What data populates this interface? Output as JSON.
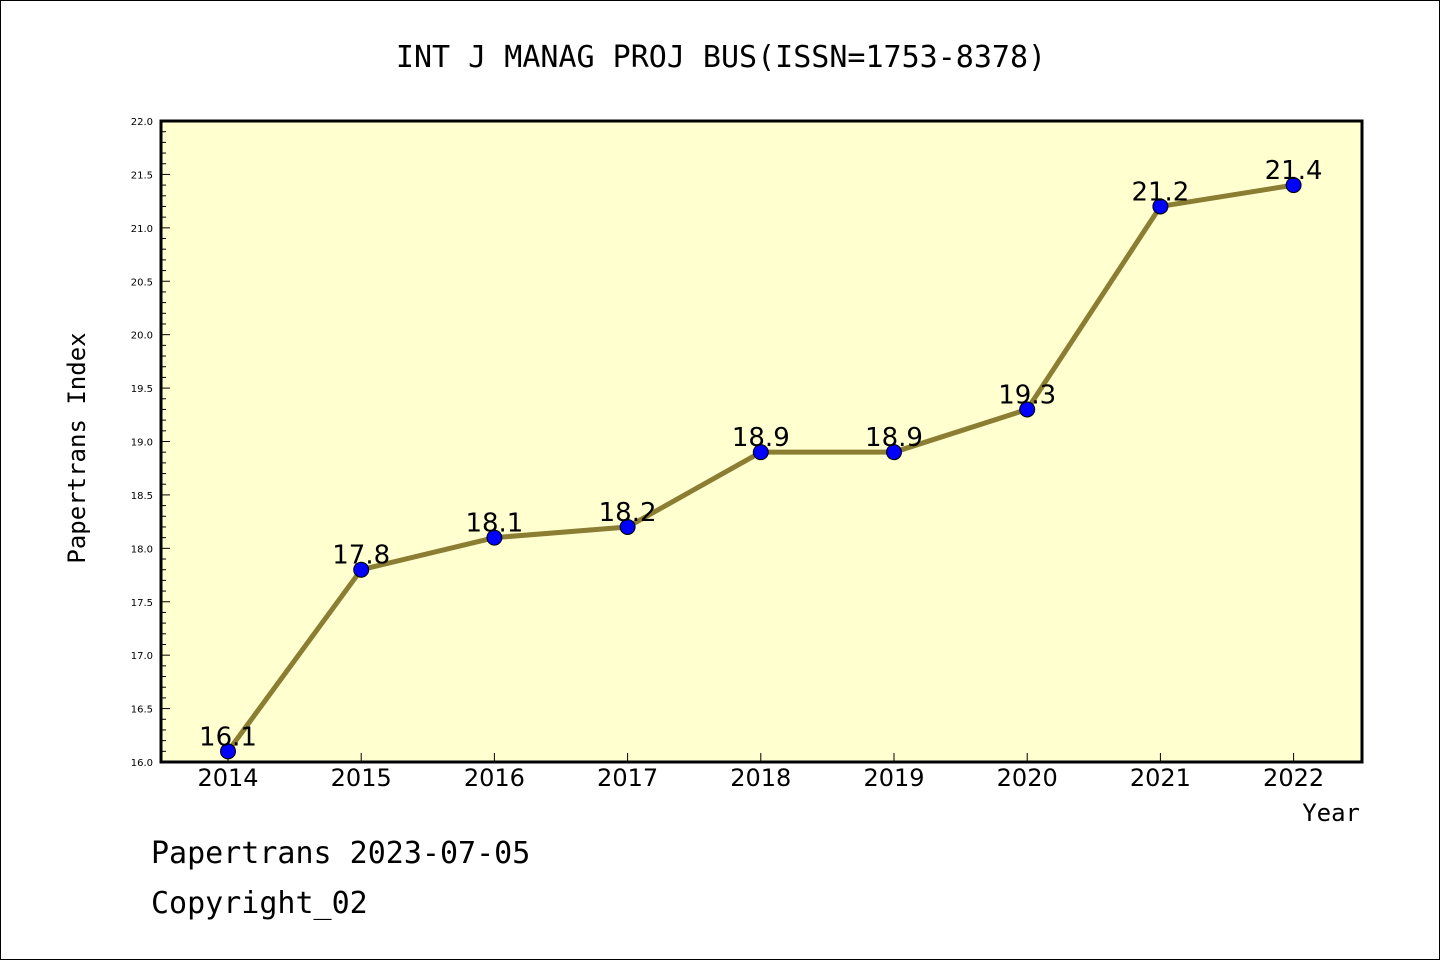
{
  "chart_data": {
    "type": "line",
    "title": "INT J MANAG PROJ BUS(ISSN=1753-8378)",
    "xlabel": "Year",
    "ylabel": "Papertrans Index",
    "categories": [
      "2014",
      "2015",
      "2016",
      "2017",
      "2018",
      "2019",
      "2020",
      "2021",
      "2022"
    ],
    "values": [
      16.1,
      17.8,
      18.1,
      18.2,
      18.9,
      18.9,
      19.3,
      21.2,
      21.4
    ],
    "data_labels": [
      "16.1",
      "17.8",
      "18.1",
      "18.2",
      "18.9",
      "18.9",
      "19.3",
      "21.2",
      "21.4"
    ],
    "ylim": [
      16.0,
      22.0
    ],
    "yticks": [
      "16.0",
      "16.5",
      "17.0",
      "17.5",
      "18.0",
      "18.5",
      "19.0",
      "19.5",
      "20.0",
      "20.5",
      "21.0",
      "21.5",
      "22.0"
    ],
    "grid": false,
    "colors": {
      "plot_background": "#ffffd0",
      "line": "#8b7d32",
      "marker": "#0000ff"
    }
  },
  "footer": {
    "line1": "Papertrans 2023-07-05",
    "line2": "Copyright_02"
  }
}
